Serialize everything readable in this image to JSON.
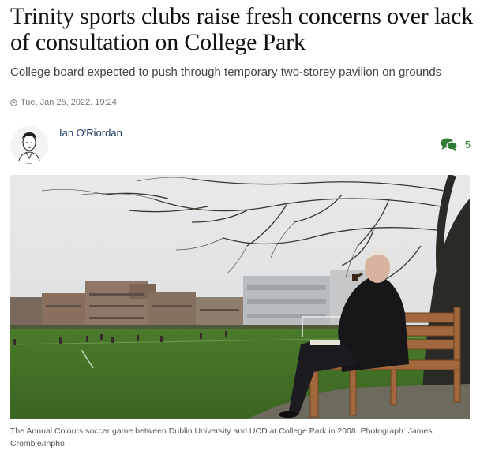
{
  "article": {
    "headline": "Trinity sports clubs raise fresh concerns over lack of consultation on College Park",
    "standfirst": "College board expected to push through temporary two-storey pavilion on grounds",
    "timestamp": "Tue, Jan 25, 2022, 19:24",
    "author": "Ian O'Riordan",
    "comment_count": "5",
    "caption": "The Annual Colours soccer game between Dublin University and UCD at College Park in 2008. Photograph: James Crombie/Inpho"
  },
  "icons": {
    "clock": "clock-icon",
    "comments": "comments-icon"
  },
  "colors": {
    "author_link": "#1b3a5f",
    "comments_accent": "#2e7d32"
  }
}
